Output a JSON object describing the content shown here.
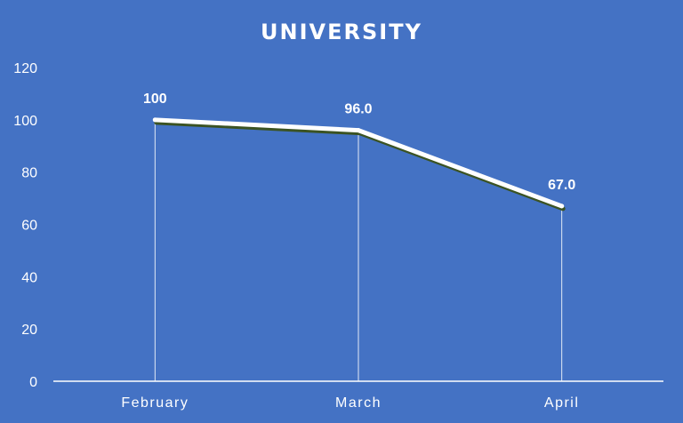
{
  "chart_data": {
    "type": "line",
    "title": "UNIVERSITY",
    "categories": [
      "February",
      "March",
      "April"
    ],
    "series": [
      {
        "values": [
          100,
          96,
          67
        ],
        "data_labels": [
          "100",
          "96.0",
          "67.0"
        ]
      }
    ],
    "ylim": [
      0,
      120
    ],
    "yticks": [
      0,
      20,
      40,
      60,
      80,
      100,
      120
    ],
    "grid": false,
    "drop_lines": true,
    "legend": "none"
  },
  "colors": {
    "background": "#4472C4",
    "line": "#FFFFFF",
    "line_shadow": "#3B5323",
    "text": "#FFFFFF"
  }
}
